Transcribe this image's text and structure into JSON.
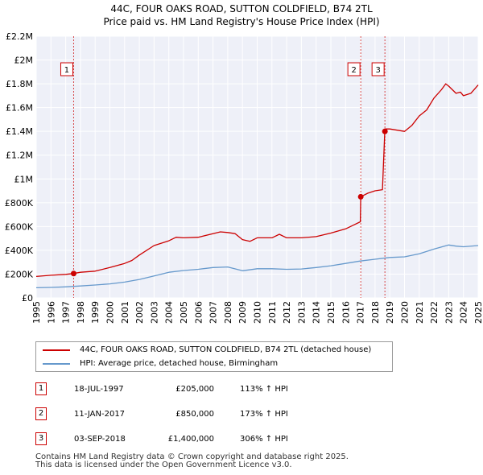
{
  "title_line1": "44C, FOUR OAKS ROAD, SUTTON COLDFIELD, B74 2TL",
  "title_line2": "Price paid vs. HM Land Registry's House Price Index (HPI)",
  "chart_data": {
    "type": "line",
    "title": "44C, FOUR OAKS ROAD, SUTTON COLDFIELD, B74 2TL",
    "subtitle": "Price paid vs. HM Land Registry's House Price Index (HPI)",
    "xlim": [
      1995,
      2025
    ],
    "ylim": [
      0,
      2200000
    ],
    "yticks": [
      {
        "value": 0,
        "label": "£0"
      },
      {
        "value": 200000,
        "label": "£200K"
      },
      {
        "value": 400000,
        "label": "£400K"
      },
      {
        "value": 600000,
        "label": "£600K"
      },
      {
        "value": 800000,
        "label": "£800K"
      },
      {
        "value": 1000000,
        "label": "£1M"
      },
      {
        "value": 1200000,
        "label": "£1.2M"
      },
      {
        "value": 1400000,
        "label": "£1.4M"
      },
      {
        "value": 1600000,
        "label": "£1.6M"
      },
      {
        "value": 1800000,
        "label": "£1.8M"
      },
      {
        "value": 2000000,
        "label": "£2M"
      },
      {
        "value": 2200000,
        "label": "£2.2M"
      }
    ],
    "xticks": [
      "1995",
      "1996",
      "1997",
      "1998",
      "1999",
      "2000",
      "2001",
      "2002",
      "2003",
      "2004",
      "2005",
      "2006",
      "2007",
      "2008",
      "2009",
      "2010",
      "2011",
      "2012",
      "2013",
      "2014",
      "2015",
      "2016",
      "2017",
      "2018",
      "2019",
      "2020",
      "2021",
      "2022",
      "2023",
      "2024",
      "2025"
    ],
    "series": [
      {
        "name": "44C, FOUR OAKS ROAD, SUTTON COLDFIELD, B74 2TL (detached house)",
        "color": "#cc0000",
        "x": [
          1995.0,
          1996.0,
          1997.0,
          1997.54,
          1998.0,
          1999.0,
          2000.0,
          2001.0,
          2001.5,
          2002.0,
          2003.0,
          2004.0,
          2004.5,
          2005.0,
          2006.0,
          2007.0,
          2007.5,
          2008.0,
          2008.5,
          2009.0,
          2009.5,
          2010.0,
          2011.0,
          2011.5,
          2012.0,
          2013.0,
          2014.0,
          2015.0,
          2016.0,
          2016.5,
          2017.0,
          2017.03,
          2017.5,
          2018.0,
          2018.5,
          2018.66,
          2018.68,
          2019.0,
          2020.0,
          2020.5,
          2021.0,
          2021.5,
          2022.0,
          2022.5,
          2022.8,
          2023.0,
          2023.5,
          2023.8,
          2024.0,
          2024.5,
          2025.0
        ],
        "values": [
          180000,
          190000,
          198000,
          205000,
          215000,
          225000,
          255000,
          290000,
          315000,
          360000,
          440000,
          480000,
          510000,
          505000,
          510000,
          540000,
          555000,
          550000,
          540000,
          490000,
          475000,
          505000,
          505000,
          535000,
          505000,
          505000,
          515000,
          545000,
          580000,
          610000,
          640000,
          850000,
          880000,
          900000,
          910000,
          1400000,
          1420000,
          1420000,
          1400000,
          1450000,
          1530000,
          1580000,
          1680000,
          1750000,
          1800000,
          1780000,
          1720000,
          1730000,
          1700000,
          1720000,
          1790000
        ]
      },
      {
        "name": "HPI: Average price, detached house, Birmingham",
        "color": "#6699cc",
        "x": [
          1995,
          1996,
          1997,
          1998,
          1999,
          2000,
          2001,
          2002,
          2003,
          2004,
          2005,
          2006,
          2007,
          2008,
          2009,
          2010,
          2011,
          2012,
          2013,
          2014,
          2015,
          2016,
          2017,
          2018,
          2019,
          2020,
          2021,
          2022,
          2023,
          2023.5,
          2024,
          2025
        ],
        "values": [
          85000,
          88000,
          93000,
          100000,
          108000,
          118000,
          133000,
          155000,
          185000,
          215000,
          230000,
          240000,
          255000,
          260000,
          228000,
          245000,
          245000,
          240000,
          243000,
          255000,
          270000,
          290000,
          310000,
          325000,
          340000,
          345000,
          370000,
          410000,
          445000,
          435000,
          430000,
          440000
        ]
      }
    ],
    "sale_markers": [
      {
        "label": "1",
        "x": 1997.54,
        "value": 205000
      },
      {
        "label": "2",
        "x": 2017.03,
        "value": 850000
      },
      {
        "label": "3",
        "x": 2018.67,
        "value": 1400000
      }
    ]
  },
  "legend": {
    "items": [
      {
        "label": "44C, FOUR OAKS ROAD, SUTTON COLDFIELD, B74 2TL (detached house)",
        "color": "#cc0000"
      },
      {
        "label": "HPI: Average price, detached house, Birmingham",
        "color": "#6699cc"
      }
    ]
  },
  "transactions": [
    {
      "num": "1",
      "date": "18-JUL-1997",
      "price": "£205,000",
      "hpi": "113% ↑ HPI"
    },
    {
      "num": "2",
      "date": "11-JAN-2017",
      "price": "£850,000",
      "hpi": "173% ↑ HPI"
    },
    {
      "num": "3",
      "date": "03-SEP-2018",
      "price": "£1,400,000",
      "hpi": "306% ↑ HPI"
    }
  ],
  "footer": {
    "line1": "Contains HM Land Registry data © Crown copyright and database right 2025.",
    "line2": "This data is licensed under the Open Government Licence v3.0."
  }
}
